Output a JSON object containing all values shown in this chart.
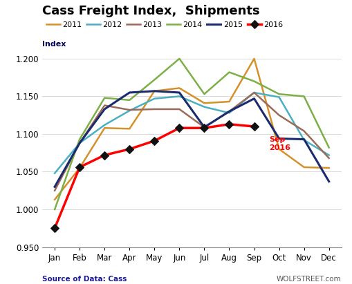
{
  "title": "Cass Freight Index,  Shipments",
  "ylabel": "Index",
  "source_text": "Source of Data: Cass",
  "website_text": "WOLFSTREET.com",
  "ylim": [
    0.95,
    1.21
  ],
  "yticks": [
    0.95,
    1.0,
    1.05,
    1.1,
    1.15,
    1.2
  ],
  "months": [
    "Jan",
    "Feb",
    "Mar",
    "Apr",
    "May",
    "Jun",
    "Jul",
    "Aug",
    "Sep",
    "Oct",
    "Nov",
    "Dec"
  ],
  "series": {
    "2011": {
      "color": "#D4912A",
      "linewidth": 1.8,
      "marker": null,
      "zorder": 2,
      "values": [
        1.013,
        1.055,
        1.108,
        1.107,
        1.157,
        1.161,
        1.141,
        1.143,
        1.2,
        1.08,
        1.056,
        1.055
      ]
    },
    "2012": {
      "color": "#4BAFC4",
      "linewidth": 1.8,
      "marker": null,
      "zorder": 2,
      "values": [
        1.048,
        1.088,
        1.112,
        1.131,
        1.147,
        1.15,
        1.136,
        1.128,
        1.155,
        1.149,
        1.092,
        1.072
      ]
    },
    "2013": {
      "color": "#9B6B5A",
      "linewidth": 1.8,
      "marker": null,
      "zorder": 2,
      "values": [
        1.025,
        1.088,
        1.138,
        1.132,
        1.133,
        1.133,
        1.109,
        1.13,
        1.155,
        1.125,
        1.104,
        1.068
      ]
    },
    "2014": {
      "color": "#7DAF47",
      "linewidth": 1.8,
      "marker": null,
      "zorder": 2,
      "values": [
        1.0,
        1.093,
        1.148,
        1.145,
        1.172,
        1.2,
        1.153,
        1.182,
        1.17,
        1.153,
        1.15,
        1.082
      ]
    },
    "2015": {
      "color": "#1A2B6E",
      "linewidth": 2.2,
      "marker": null,
      "zorder": 3,
      "values": [
        1.03,
        1.088,
        1.133,
        1.155,
        1.157,
        1.155,
        1.109,
        1.13,
        1.147,
        1.094,
        1.093,
        1.037
      ]
    },
    "2016": {
      "color": "#FF0000",
      "linewidth": 2.5,
      "marker": "D",
      "markersize": 6,
      "zorder": 5,
      "values": [
        0.975,
        1.056,
        1.072,
        1.08,
        1.091,
        1.108,
        1.108,
        1.113,
        1.11,
        null,
        null,
        null
      ],
      "markerfacecolor": "#111111",
      "markeredgecolor": "#111111"
    }
  },
  "annotation_text": "Sep\n2016",
  "annotation_color": "#FF0000",
  "annotation_xi": 8,
  "annotation_yi": 1.11,
  "annotation_xt": 8.6,
  "annotation_yt": 1.097,
  "annotation_fontsize": 8,
  "legend_order": [
    "2011",
    "2012",
    "2013",
    "2014",
    "2015",
    "2016"
  ],
  "title_fontsize": 13,
  "tick_fontsize": 8.5,
  "label_fontsize": 8
}
